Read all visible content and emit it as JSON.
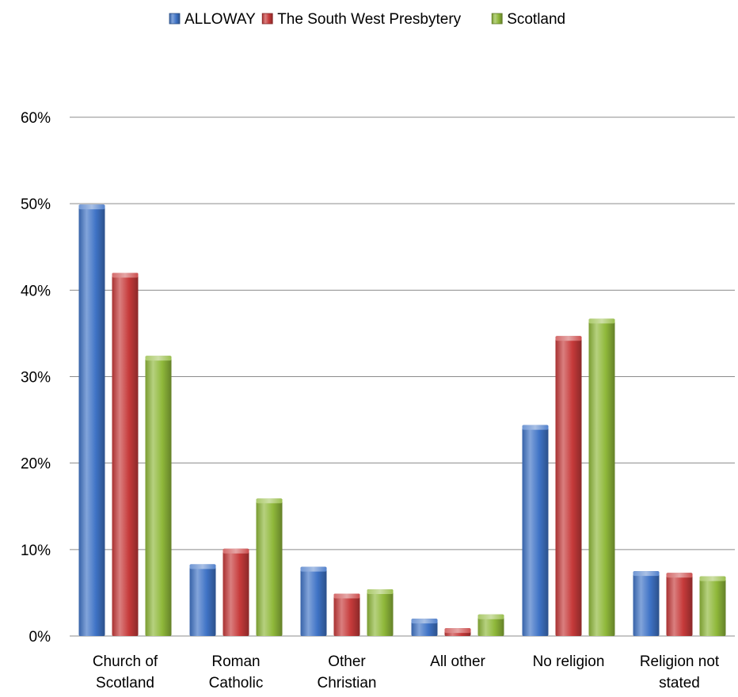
{
  "chart_data": {
    "type": "bar",
    "categories": [
      [
        "Church of",
        "Scotland"
      ],
      [
        "Roman",
        "Catholic"
      ],
      [
        "Other",
        "Christian"
      ],
      [
        "All other"
      ],
      [
        "No religion"
      ],
      [
        "Religion not",
        "stated"
      ]
    ],
    "series": [
      {
        "name": "ALLOWAY",
        "color": "#3f73c6",
        "values": [
          49.9,
          8.3,
          8.0,
          2.0,
          24.4,
          7.5
        ]
      },
      {
        "name": "The South West Presbytery",
        "color": "#c63a3a",
        "values": [
          42.0,
          10.1,
          4.9,
          0.9,
          34.7,
          7.3
        ]
      },
      {
        "name": "Scotland",
        "color": "#8fb83a",
        "values": [
          32.4,
          15.9,
          5.4,
          2.5,
          36.7,
          6.9
        ]
      }
    ],
    "ylim": [
      0,
      60
    ],
    "yticks": [
      "0%",
      "10%",
      "20%",
      "30%",
      "40%",
      "50%",
      "60%"
    ],
    "grid": true,
    "legend_position": "top"
  }
}
